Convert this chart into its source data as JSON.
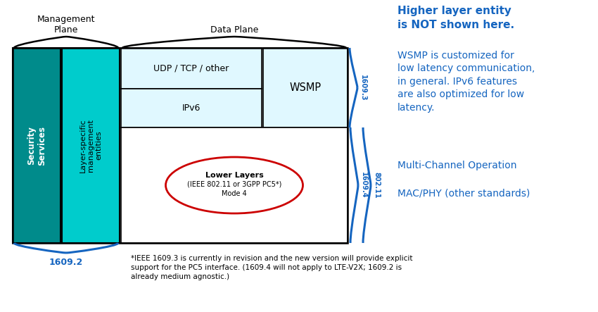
{
  "bg_color": "#ffffff",
  "teal_dark": "#008B8B",
  "teal_light": "#00CCCC",
  "box_light_blue": "#E0F8FF",
  "blue_text": "#1565C0",
  "blue_bracket": "#1565C0",
  "red_ellipse": "#CC0000",
  "black": "#000000",
  "mgmt_plane_label": "Management\nPlane",
  "data_plane_label": "Data Plane",
  "security_label": "Security\nServices",
  "layer_mgmt_label": "Layer-specific\nmanagement\nentities",
  "udp_tcp_label": "UDP / TCP / other",
  "ipv6_label": "IPv6",
  "wsmp_label": "WSMP",
  "lower_layers_line1": "Lower Layers",
  "lower_layers_line2": "(IEEE 802.11 or 3GPP PC5*)",
  "lower_layers_line3": "Mode 4",
  "std_1609_3": "1609.3",
  "std_1609_4": "1609.4",
  "std_802_11": "802.11",
  "std_1609_2": "1609.2",
  "right_text1": "Higher layer entity\nis NOT shown here.",
  "right_text2": "WSMP is customized for\nlow latency communication,\nin general. IPv6 features\nare also optimized for low\nlatency.",
  "right_text3": "Multi-Channel Operation",
  "right_text4": "MAC/PHY (other standards)",
  "footnote_star": "*IEEE 1609.3 is currently in revision and the new version will provide explicit\nsupport for the PC5 interface. (1609.4 will not apply to LTE-V2X; 1609.2 is\nalready medium agnostic.)"
}
